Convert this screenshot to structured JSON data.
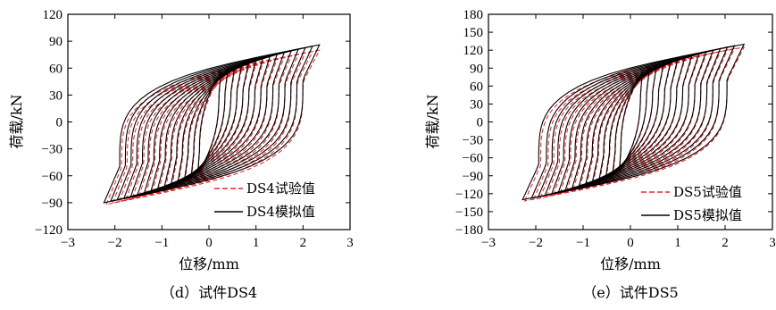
{
  "chart_data": [
    {
      "type": "line",
      "caption": "（d）试件DS4",
      "xlabel": "位移/mm",
      "ylabel": "荷载/kN",
      "xlim": [
        -3,
        3
      ],
      "ylim": [
        -120,
        120
      ],
      "xticks": [
        "−3",
        "−2",
        "−1",
        "0",
        "1",
        "2",
        "3"
      ],
      "yticks": [
        "−120",
        "−90",
        "−60",
        "−30",
        "0",
        "30",
        "60",
        "90",
        "120"
      ],
      "legend_position": "bottom-right",
      "series": [
        {
          "name": "DS4试验值",
          "style": "dashed",
          "color": "#e8262b",
          "peak_disp": [
            0.25,
            0.4,
            0.55,
            0.7,
            0.85,
            1.0,
            1.15,
            1.3,
            1.45,
            1.6,
            1.75,
            1.9,
            2.05,
            2.2,
            2.35
          ],
          "max_load": 80,
          "min_load": -92
        },
        {
          "name": "DS4模拟值",
          "style": "solid",
          "color": "#000000",
          "peak_disp": [
            0.25,
            0.4,
            0.55,
            0.7,
            0.85,
            1.0,
            1.15,
            1.3,
            1.45,
            1.6,
            1.75,
            1.9,
            2.05,
            2.2,
            2.35
          ],
          "max_load": 86,
          "min_load": -90
        }
      ]
    },
    {
      "type": "line",
      "caption": "（e）试件DS5",
      "xlabel": "位移/mm",
      "ylabel": "荷载/kN",
      "xlim": [
        -3,
        3
      ],
      "ylim": [
        -180,
        180
      ],
      "xticks": [
        "−3",
        "−2",
        "−1",
        "0",
        "1",
        "2",
        "3"
      ],
      "yticks": [
        "−180",
        "−150",
        "−120",
        "−90",
        "−60",
        "−30",
        "0",
        "30",
        "60",
        "90",
        "120",
        "150",
        "180"
      ],
      "legend_position": "bottom-right",
      "series": [
        {
          "name": "DS5试验值",
          "style": "dashed",
          "color": "#e8262b",
          "peak_disp": [
            0.25,
            0.4,
            0.55,
            0.7,
            0.85,
            1.0,
            1.15,
            1.3,
            1.45,
            1.6,
            1.75,
            1.9,
            2.05,
            2.2,
            2.4
          ],
          "max_load": 125,
          "min_load": -132
        },
        {
          "name": "DS5模拟值",
          "style": "solid",
          "color": "#000000",
          "peak_disp": [
            0.25,
            0.4,
            0.55,
            0.7,
            0.85,
            1.0,
            1.15,
            1.3,
            1.45,
            1.6,
            1.75,
            1.9,
            2.05,
            2.2,
            2.4
          ],
          "max_load": 130,
          "min_load": -130
        }
      ]
    }
  ]
}
